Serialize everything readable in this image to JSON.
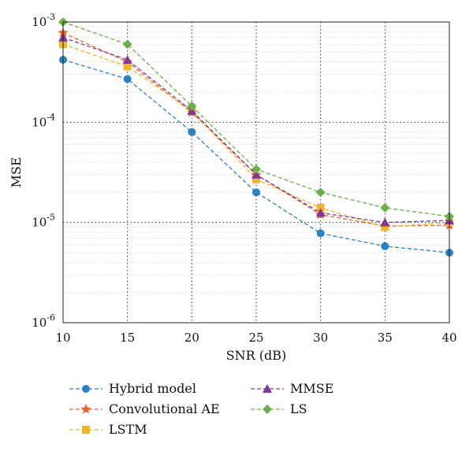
{
  "chart_data": {
    "type": "line",
    "xlabel": "SNR (dB)",
    "ylabel": "MSE",
    "yscale": "log",
    "xlim": [
      10,
      40
    ],
    "ylim": [
      1e-06,
      0.001
    ],
    "x_ticks": [
      10,
      15,
      20,
      25,
      30,
      35,
      40
    ],
    "x_tick_labels": [
      "10",
      "15",
      "20",
      "25",
      "30",
      "35",
      "40"
    ],
    "y_ticks": [
      1e-06,
      1e-05,
      0.0001,
      0.001
    ],
    "y_tick_labels": [
      {
        "base": "10",
        "exp": "-6"
      },
      {
        "base": "10",
        "exp": "-5"
      },
      {
        "base": "10",
        "exp": "-4"
      },
      {
        "base": "10",
        "exp": "-3"
      }
    ],
    "grid": true,
    "legend_position": "bottom",
    "x": [
      10,
      15,
      20,
      25,
      30,
      35,
      40
    ],
    "series": [
      {
        "name": "Hybrid model",
        "color": "#2b83c6",
        "marker": "circle",
        "values": [
          0.00042,
          0.00027,
          8e-05,
          2e-05,
          7.8e-06,
          5.8e-06,
          5e-06
        ]
      },
      {
        "name": "Convolutional AE",
        "color": "#e8632b",
        "marker": "star",
        "values": [
          0.00078,
          0.0004,
          0.000125,
          3e-05,
          1.2e-05,
          9.2e-06,
          9.4e-06
        ]
      },
      {
        "name": "LSTM",
        "color": "#f0b52a",
        "marker": "square",
        "values": [
          0.0006,
          0.00036,
          0.00013,
          2.7e-05,
          1.4e-05,
          9e-06,
          1e-05
        ]
      },
      {
        "name": "MMSE",
        "color": "#7e3a96",
        "marker": "triangle",
        "values": [
          0.0007,
          0.00042,
          0.00013,
          3e-05,
          1.25e-05,
          1e-05,
          1.05e-05
        ]
      },
      {
        "name": "LS",
        "color": "#6ab04c",
        "marker": "diamond",
        "values": [
          0.001,
          0.0006,
          0.000145,
          3.4e-05,
          2e-05,
          1.4e-05,
          1.15e-05
        ]
      }
    ]
  }
}
